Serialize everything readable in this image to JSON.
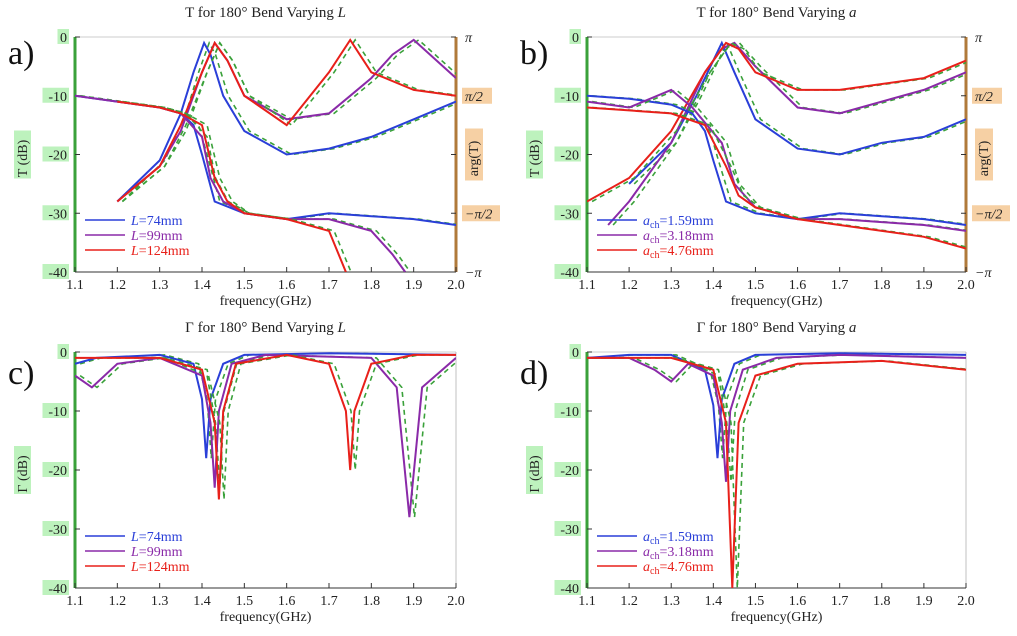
{
  "chart_data": [
    {
      "panel": "a)",
      "type": "line",
      "title": "T for 180° Bend Varying",
      "title_var": "L",
      "xlabel": "frequency(GHz)",
      "ylabel": "T (dB)",
      "y2label": "arg(T)",
      "xlim": [
        1.1,
        2.0
      ],
      "ylim": [
        -40,
        0
      ],
      "xticks": [
        "1.1",
        "1.2",
        "1.3",
        "1.4",
        "1.5",
        "1.6",
        "1.7",
        "1.8",
        "1.9",
        "2.0"
      ],
      "yticks": [
        "0",
        "-10",
        "-20",
        "-30",
        "-40"
      ],
      "y2ticks": [
        "π",
        "π/2",
        "0",
        "−π/2",
        "−π"
      ],
      "grid": false,
      "legend_position": "bottom-left",
      "legend": [
        {
          "var": "L",
          "text": "=74mm",
          "color": "#2a3fd8"
        },
        {
          "var": "L",
          "text": "=99mm",
          "color": "#8a2aa8"
        },
        {
          "var": "L",
          "text": "=124mm",
          "color": "#e8201a"
        }
      ],
      "series": [
        {
          "color": "#2a3fd8",
          "measured": true,
          "x": [
            1.2,
            1.3,
            1.35,
            1.38,
            1.405,
            1.42,
            1.45,
            1.5,
            1.6,
            1.7,
            1.8,
            1.9,
            2.0
          ],
          "y": [
            -28,
            -21,
            -13,
            -6,
            -1,
            -3,
            -10,
            -16,
            -20,
            -19,
            -17,
            -14,
            -11
          ]
        },
        {
          "color": "#8a2aa8",
          "measured": true,
          "x": [
            1.2,
            1.3,
            1.35,
            1.4,
            1.43,
            1.46,
            1.5,
            1.6,
            1.7,
            1.75,
            1.8,
            1.85,
            1.9,
            2.0
          ],
          "y": [
            -28,
            -22,
            -16,
            -6,
            -1,
            -4,
            -10,
            -14,
            -13,
            -10,
            -7,
            -3,
            -0.5,
            -7
          ]
        },
        {
          "color": "#e8201a",
          "measured": true,
          "x": [
            1.2,
            1.3,
            1.35,
            1.4,
            1.43,
            1.46,
            1.5,
            1.6,
            1.7,
            1.75,
            1.8,
            1.9,
            2.0
          ],
          "y": [
            -28,
            -22,
            -15,
            -6,
            -1,
            -4,
            -10,
            -15,
            -6,
            -0.5,
            -6,
            -9,
            -10
          ]
        },
        {
          "color": "#2a3fd8",
          "measured": true,
          "x": [
            1.1,
            1.2,
            1.3,
            1.35,
            1.38,
            1.4,
            1.43,
            1.5,
            1.6,
            1.7,
            1.8,
            1.9,
            2.0
          ],
          "y": [
            -10,
            -11,
            -12,
            -13,
            -15,
            -20,
            -28,
            -30,
            -31,
            -30,
            -30.5,
            -31,
            -32
          ]
        },
        {
          "color": "#8a2aa8",
          "measured": true,
          "x": [
            1.1,
            1.2,
            1.3,
            1.35,
            1.4,
            1.42,
            1.45,
            1.5,
            1.6,
            1.7,
            1.8,
            1.85,
            1.88
          ],
          "y": [
            -10,
            -11,
            -12,
            -13,
            -17,
            -24,
            -28,
            -30,
            -31,
            -31,
            -33,
            -37,
            -40
          ]
        },
        {
          "color": "#e8201a",
          "measured": true,
          "x": [
            1.2,
            1.3,
            1.35,
            1.4,
            1.43,
            1.46,
            1.5,
            1.6,
            1.7,
            1.74
          ],
          "y": [
            -11,
            -12,
            -13,
            -15,
            -24,
            -28,
            -30,
            -31,
            -33,
            -40
          ]
        }
      ]
    },
    {
      "panel": "b)",
      "type": "line",
      "title": "T for 180° Bend Varying",
      "title_var": "a",
      "xlabel": "frequency(GHz)",
      "ylabel": "T (dB)",
      "y2label": "arg(T)",
      "xlim": [
        1.1,
        2.0
      ],
      "ylim": [
        -40,
        0
      ],
      "xticks": [
        "1.1",
        "1.2",
        "1.3",
        "1.4",
        "1.5",
        "1.6",
        "1.7",
        "1.8",
        "1.9",
        "2.0"
      ],
      "yticks": [
        "0",
        "-10",
        "-20",
        "-30",
        "-40"
      ],
      "y2ticks": [
        "π",
        "π/2",
        "0",
        "−π/2",
        "−π"
      ],
      "grid": false,
      "legend_position": "bottom-left",
      "legend": [
        {
          "var": "a",
          "sub": "ch",
          "text": "=1.59mm",
          "color": "#2a3fd8"
        },
        {
          "var": "a",
          "sub": "ch",
          "text": "=3.18mm",
          "color": "#8a2aa8"
        },
        {
          "var": "a",
          "sub": "ch",
          "text": "=4.76mm",
          "color": "#e8201a"
        }
      ],
      "series": [
        {
          "color": "#2a3fd8",
          "measured": true,
          "x": [
            1.2,
            1.3,
            1.36,
            1.4,
            1.42,
            1.45,
            1.5,
            1.6,
            1.7,
            1.8,
            1.9,
            2.0
          ],
          "y": [
            -25,
            -18,
            -10,
            -4,
            -1,
            -6,
            -14,
            -19,
            -20,
            -18,
            -17,
            -14
          ]
        },
        {
          "color": "#8a2aa8",
          "measured": true,
          "x": [
            1.15,
            1.2,
            1.3,
            1.38,
            1.42,
            1.45,
            1.5,
            1.6,
            1.7,
            1.8,
            1.9,
            2.0
          ],
          "y": [
            -32,
            -28,
            -18,
            -6,
            -2,
            -1,
            -5,
            -12,
            -13,
            -11,
            -9,
            -6
          ]
        },
        {
          "color": "#e8201a",
          "measured": true,
          "x": [
            1.1,
            1.2,
            1.3,
            1.38,
            1.43,
            1.46,
            1.5,
            1.6,
            1.7,
            1.8,
            1.9,
            2.0
          ],
          "y": [
            -28,
            -24,
            -16,
            -6,
            -1,
            -2,
            -6,
            -9,
            -9,
            -8,
            -7,
            -4
          ]
        },
        {
          "color": "#2a3fd8",
          "measured": true,
          "x": [
            1.1,
            1.2,
            1.3,
            1.35,
            1.38,
            1.4,
            1.43,
            1.5,
            1.6,
            1.7,
            1.8,
            1.9,
            2.0
          ],
          "y": [
            -10,
            -10.5,
            -11.5,
            -13,
            -16,
            -21,
            -28,
            -30,
            -31,
            -30,
            -30.5,
            -31,
            -32
          ]
        },
        {
          "color": "#8a2aa8",
          "measured": true,
          "x": [
            1.1,
            1.2,
            1.3,
            1.35,
            1.42,
            1.45,
            1.5,
            1.6,
            1.7,
            1.8,
            1.9,
            2.0
          ],
          "y": [
            -11,
            -12,
            -9,
            -12,
            -18,
            -25,
            -29,
            -31,
            -31,
            -31.5,
            -32,
            -33
          ]
        },
        {
          "color": "#e8201a",
          "measured": true,
          "x": [
            1.1,
            1.2,
            1.3,
            1.38,
            1.43,
            1.46,
            1.5,
            1.6,
            1.7,
            1.8,
            1.9,
            2.0
          ],
          "y": [
            -12,
            -12.5,
            -13,
            -15,
            -22,
            -27,
            -29,
            -31,
            -32,
            -33,
            -34,
            -36
          ]
        }
      ]
    },
    {
      "panel": "c)",
      "type": "line",
      "title": "Γ for 180° Bend Varying",
      "title_var": "L",
      "xlabel": "frequency(GHz)",
      "ylabel": "Γ (dB)",
      "xlim": [
        1.1,
        2.0
      ],
      "ylim": [
        -40,
        0
      ],
      "xticks": [
        "1.1",
        "1.2",
        "1.3",
        "1.4",
        "1.5",
        "1.6",
        "1.7",
        "1.8",
        "1.9",
        "2.0"
      ],
      "yticks": [
        "0",
        "-10",
        "-20",
        "-30",
        "-40"
      ],
      "grid": false,
      "legend_position": "bottom-left",
      "legend": [
        {
          "var": "L",
          "text": "=74mm",
          "color": "#2a3fd8"
        },
        {
          "var": "L",
          "text": "=99mm",
          "color": "#8a2aa8"
        },
        {
          "var": "L",
          "text": "=124mm",
          "color": "#e8201a"
        }
      ],
      "series": [
        {
          "color": "#2a3fd8",
          "measured": true,
          "x": [
            1.1,
            1.15,
            1.3,
            1.38,
            1.4,
            1.41,
            1.42,
            1.45,
            1.5,
            1.7,
            2.0
          ],
          "y": [
            -2,
            -1,
            -0.5,
            -2,
            -8,
            -18,
            -8,
            -2,
            -0.5,
            -0.2,
            -0.5
          ]
        },
        {
          "color": "#8a2aa8",
          "measured": true,
          "x": [
            1.1,
            1.14,
            1.2,
            1.3,
            1.4,
            1.42,
            1.43,
            1.44,
            1.47,
            1.55,
            1.8,
            1.86,
            1.89,
            1.92,
            2.0
          ],
          "y": [
            -4,
            -6,
            -2,
            -1,
            -4,
            -12,
            -23,
            -10,
            -2,
            -0.5,
            -1,
            -6,
            -28,
            -6,
            -1
          ]
        },
        {
          "color": "#e8201a",
          "measured": true,
          "x": [
            1.1,
            1.2,
            1.3,
            1.4,
            1.43,
            1.44,
            1.45,
            1.48,
            1.6,
            1.7,
            1.74,
            1.75,
            1.76,
            1.8,
            1.9,
            2.0
          ],
          "y": [
            -1,
            -1,
            -1,
            -3,
            -12,
            -25,
            -10,
            -2,
            -0.5,
            -2,
            -10,
            -20,
            -10,
            -2,
            -0.5,
            -0.5
          ]
        }
      ]
    },
    {
      "panel": "d)",
      "type": "line",
      "title": "Γ for 180° Bend Varying",
      "title_var": "a",
      "xlabel": "frequency(GHz)",
      "ylabel": "Γ (dB)",
      "xlim": [
        1.1,
        2.0
      ],
      "ylim": [
        -40,
        0
      ],
      "xticks": [
        "1.1",
        "1.2",
        "1.3",
        "1.4",
        "1.5",
        "1.6",
        "1.7",
        "1.8",
        "1.9",
        "2.0"
      ],
      "yticks": [
        "0",
        "-10",
        "-20",
        "-30",
        "-40"
      ],
      "grid": false,
      "legend_position": "bottom-left",
      "legend": [
        {
          "var": "a",
          "sub": "ch",
          "text": "=1.59mm",
          "color": "#2a3fd8"
        },
        {
          "var": "a",
          "sub": "ch",
          "text": "=3.18mm",
          "color": "#8a2aa8"
        },
        {
          "var": "a",
          "sub": "ch",
          "text": "=4.76mm",
          "color": "#e8201a"
        }
      ],
      "series": [
        {
          "color": "#2a3fd8",
          "measured": true,
          "x": [
            1.1,
            1.2,
            1.3,
            1.38,
            1.4,
            1.41,
            1.42,
            1.45,
            1.5,
            1.7,
            2.0
          ],
          "y": [
            -1,
            -0.5,
            -0.5,
            -3,
            -9,
            -18,
            -8,
            -2,
            -0.5,
            -0.2,
            -0.5
          ]
        },
        {
          "color": "#8a2aa8",
          "measured": true,
          "x": [
            1.1,
            1.2,
            1.26,
            1.3,
            1.34,
            1.4,
            1.42,
            1.43,
            1.44,
            1.47,
            1.55,
            1.7,
            2.0
          ],
          "y": [
            -1,
            -1,
            -3,
            -5,
            -2,
            -4,
            -12,
            -22,
            -10,
            -3,
            -1,
            -0.5,
            -1
          ]
        },
        {
          "color": "#e8201a",
          "measured": true,
          "x": [
            1.1,
            1.2,
            1.3,
            1.4,
            1.43,
            1.445,
            1.46,
            1.5,
            1.6,
            1.8,
            2.0
          ],
          "y": [
            -1,
            -1,
            -1,
            -3,
            -12,
            -40,
            -12,
            -4,
            -2,
            -1.5,
            -3
          ]
        }
      ]
    }
  ]
}
